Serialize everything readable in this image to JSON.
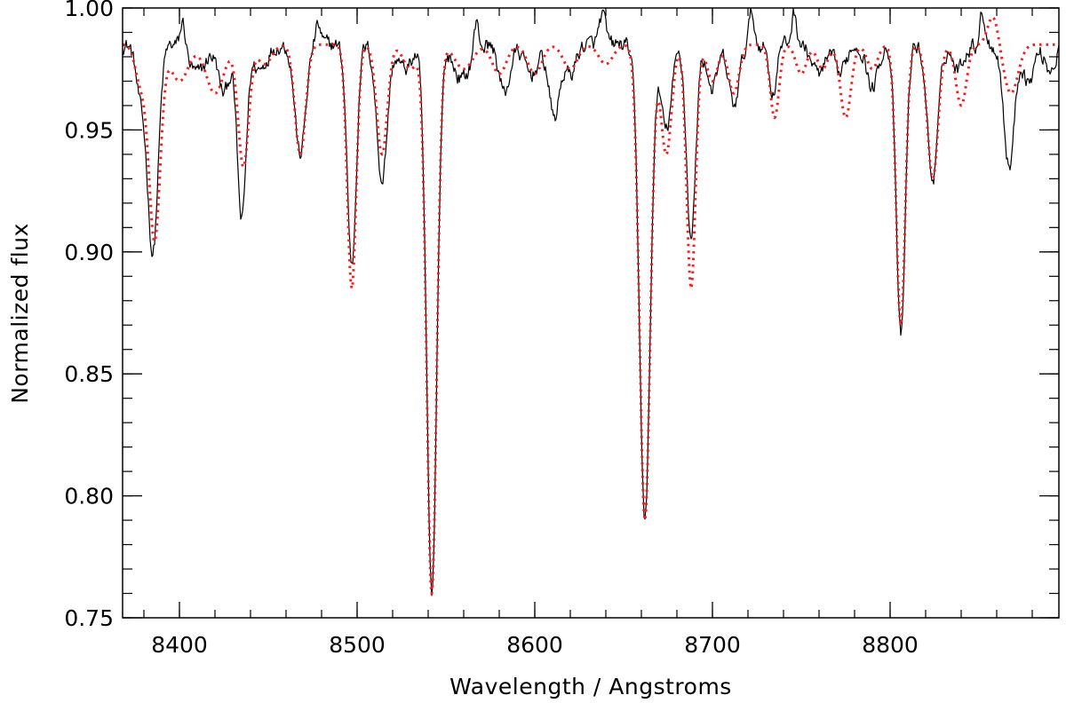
{
  "chart_data": {
    "type": "line",
    "title": "",
    "xlabel": "Wavelength / Angstroms",
    "ylabel": "Normalized flux",
    "xlim": [
      8368,
      8895
    ],
    "ylim": [
      0.75,
      1.0
    ],
    "x_ticks": [
      8400,
      8500,
      8600,
      8700,
      8800
    ],
    "x_tick_labels": [
      "8400",
      "8500",
      "8600",
      "8700",
      "8800"
    ],
    "y_ticks": [
      0.75,
      0.8,
      0.85,
      0.9,
      0.95,
      1.0
    ],
    "y_tick_labels": [
      "0.75",
      "0.80",
      "0.85",
      "0.90",
      "0.95",
      "1.00"
    ],
    "x_minor_step": 20,
    "y_minor_step": 0.01,
    "grid": false,
    "legend": "none",
    "continuum": 0.985,
    "series": [
      {
        "color": "#000000",
        "style": "solid",
        "width": 1.2,
        "noise": 0.006,
        "lines": [
          [
            8385,
            0.085,
            3.0
          ],
          [
            8378,
            0.02,
            2.5
          ],
          [
            8402,
            -0.012,
            1.5
          ],
          [
            8410,
            0.012,
            5.0
          ],
          [
            8425,
            0.02,
            3.0
          ],
          [
            8435,
            0.072,
            2.5
          ],
          [
            8445,
            0.01,
            4.0
          ],
          [
            8468,
            0.045,
            3.0
          ],
          [
            8478,
            -0.008,
            1.5
          ],
          [
            8497,
            0.09,
            2.5
          ],
          [
            8514,
            0.055,
            3.0
          ],
          [
            8527,
            0.01,
            4.0
          ],
          [
            8542,
            0.225,
            2.8
          ],
          [
            8559,
            0.014,
            5.0
          ],
          [
            8567,
            -0.012,
            1.5
          ],
          [
            8583,
            0.02,
            3.0
          ],
          [
            8598,
            0.012,
            4.0
          ],
          [
            8611,
            0.03,
            3.0
          ],
          [
            8620,
            0.012,
            3.0
          ],
          [
            8638,
            -0.012,
            1.8
          ],
          [
            8662,
            0.195,
            3.0
          ],
          [
            8674,
            0.035,
            3.0
          ],
          [
            8688,
            0.08,
            2.5
          ],
          [
            8700,
            0.018,
            3.0
          ],
          [
            8712,
            0.025,
            3.0
          ],
          [
            8722,
            -0.013,
            1.5
          ],
          [
            8734,
            0.02,
            2.0
          ],
          [
            8746,
            -0.013,
            1.5
          ],
          [
            8760,
            0.012,
            4.0
          ],
          [
            8772,
            0.012,
            3.0
          ],
          [
            8790,
            0.018,
            3.0
          ],
          [
            8806,
            0.12,
            2.5
          ],
          [
            8824,
            0.055,
            3.0
          ],
          [
            8838,
            0.01,
            3.0
          ],
          [
            8852,
            -0.013,
            1.5
          ],
          [
            8867,
            0.05,
            3.0
          ],
          [
            8878,
            0.015,
            3.0
          ],
          [
            8890,
            0.01,
            3.0
          ]
        ]
      },
      {
        "color": "#ff1a1a",
        "style": "dotted",
        "width": 3,
        "noise": 0,
        "lines": [
          [
            8386,
            0.08,
            3.2
          ],
          [
            8378,
            0.015,
            3.0
          ],
          [
            8400,
            0.015,
            5.0
          ],
          [
            8420,
            0.02,
            5.0
          ],
          [
            8436,
            0.05,
            3.0
          ],
          [
            8448,
            0.008,
            4.0
          ],
          [
            8468,
            0.045,
            3.0
          ],
          [
            8497,
            0.1,
            2.5
          ],
          [
            8514,
            0.045,
            3.0
          ],
          [
            8530,
            0.01,
            4.0
          ],
          [
            8542,
            0.225,
            2.8
          ],
          [
            8560,
            0.01,
            5.0
          ],
          [
            8580,
            0.012,
            4.0
          ],
          [
            8600,
            0.012,
            4.0
          ],
          [
            8620,
            0.01,
            4.0
          ],
          [
            8640,
            0.008,
            4.0
          ],
          [
            8662,
            0.195,
            3.0
          ],
          [
            8674,
            0.045,
            3.0
          ],
          [
            8688,
            0.1,
            2.5
          ],
          [
            8700,
            0.015,
            3.0
          ],
          [
            8712,
            0.02,
            3.0
          ],
          [
            8735,
            0.03,
            2.5
          ],
          [
            8750,
            0.012,
            3.0
          ],
          [
            8762,
            0.01,
            3.0
          ],
          [
            8775,
            0.03,
            3.0
          ],
          [
            8790,
            0.01,
            3.0
          ],
          [
            8806,
            0.115,
            2.5
          ],
          [
            8824,
            0.055,
            3.0
          ],
          [
            8840,
            0.025,
            3.0
          ],
          [
            8858,
            -0.012,
            3.0
          ],
          [
            8868,
            0.02,
            4.0
          ]
        ]
      }
    ]
  }
}
